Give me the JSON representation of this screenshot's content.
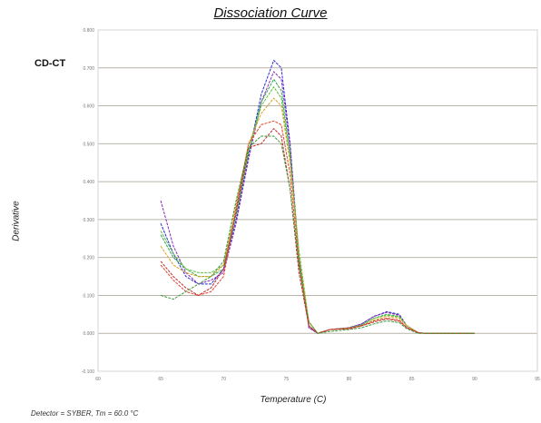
{
  "chart_data": {
    "type": "line",
    "title": "Dissociation Curve",
    "annotation": "CD-CT",
    "xlabel": "Temperature (C)",
    "ylabel": "Derivative",
    "footer": "Detector = SYBER, Tm = 60.0 °C",
    "xlim": [
      60,
      95
    ],
    "ylim": [
      -0.1,
      0.8
    ],
    "xticks": [
      "60",
      "65",
      "70",
      "75",
      "80",
      "85",
      "90",
      "95"
    ],
    "yticks": [
      "-0.100",
      "0.000",
      "0.100",
      "0.200",
      "0.300",
      "0.400",
      "0.500",
      "0.600",
      "0.700",
      "0.800"
    ],
    "grid": "horizontal",
    "series": [
      {
        "color": "#2a2ad6",
        "values": [
          [
            65,
            0.29
          ],
          [
            66,
            0.21
          ],
          [
            67,
            0.15
          ],
          [
            68,
            0.13
          ],
          [
            69,
            0.13
          ],
          [
            70,
            0.17
          ],
          [
            71,
            0.3
          ],
          [
            72,
            0.47
          ],
          [
            73,
            0.63
          ],
          [
            74,
            0.72
          ],
          [
            74.6,
            0.7
          ],
          [
            75.3,
            0.5
          ],
          [
            76,
            0.2
          ],
          [
            76.8,
            0.015
          ],
          [
            77.5,
            0.0
          ],
          [
            78.5,
            0.01
          ],
          [
            80,
            0.015
          ],
          [
            81,
            0.025
          ],
          [
            82,
            0.045
          ],
          [
            83,
            0.057
          ],
          [
            84,
            0.05
          ],
          [
            84.6,
            0.02
          ],
          [
            85.5,
            0.002
          ],
          [
            86,
            0.0
          ],
          [
            88,
            0.0
          ],
          [
            90,
            0.0
          ]
        ]
      },
      {
        "color": "#8a2bb8",
        "values": [
          [
            65,
            0.35
          ],
          [
            66,
            0.23
          ],
          [
            67,
            0.16
          ],
          [
            68,
            0.13
          ],
          [
            69,
            0.14
          ],
          [
            70,
            0.16
          ],
          [
            71,
            0.29
          ],
          [
            72,
            0.46
          ],
          [
            73,
            0.61
          ],
          [
            74,
            0.69
          ],
          [
            74.6,
            0.67
          ],
          [
            75.3,
            0.49
          ],
          [
            76,
            0.19
          ],
          [
            76.8,
            0.015
          ],
          [
            77.5,
            0.0
          ],
          [
            78.5,
            0.01
          ],
          [
            80,
            0.015
          ],
          [
            81,
            0.025
          ],
          [
            82,
            0.045
          ],
          [
            83,
            0.055
          ],
          [
            84,
            0.048
          ],
          [
            84.6,
            0.02
          ],
          [
            85.5,
            0.002
          ],
          [
            86,
            0.0
          ],
          [
            88,
            0.0
          ],
          [
            90,
            0.0
          ]
        ]
      },
      {
        "color": "#2aa84a",
        "values": [
          [
            65,
            0.26
          ],
          [
            66,
            0.2
          ],
          [
            67,
            0.17
          ],
          [
            68,
            0.15
          ],
          [
            69,
            0.15
          ],
          [
            70,
            0.17
          ],
          [
            71,
            0.31
          ],
          [
            72,
            0.48
          ],
          [
            73,
            0.61
          ],
          [
            74,
            0.67
          ],
          [
            74.6,
            0.64
          ],
          [
            75.3,
            0.47
          ],
          [
            76,
            0.2
          ],
          [
            76.8,
            0.02
          ],
          [
            77.5,
            0.0
          ],
          [
            78.5,
            0.01
          ],
          [
            80,
            0.014
          ],
          [
            81,
            0.022
          ],
          [
            82,
            0.04
          ],
          [
            83,
            0.05
          ],
          [
            84,
            0.045
          ],
          [
            84.6,
            0.02
          ],
          [
            85.5,
            0.002
          ],
          [
            86,
            0.0
          ],
          [
            88,
            0.0
          ],
          [
            90,
            0.0
          ]
        ]
      },
      {
        "color": "#5bbf3a",
        "values": [
          [
            65,
            0.27
          ],
          [
            66,
            0.21
          ],
          [
            67,
            0.17
          ],
          [
            68,
            0.16
          ],
          [
            69,
            0.16
          ],
          [
            70,
            0.18
          ],
          [
            71,
            0.32
          ],
          [
            72,
            0.48
          ],
          [
            73,
            0.6
          ],
          [
            74,
            0.65
          ],
          [
            74.6,
            0.62
          ],
          [
            75.3,
            0.46
          ],
          [
            76,
            0.22
          ],
          [
            76.8,
            0.03
          ],
          [
            77.5,
            0.0
          ],
          [
            78.5,
            0.01
          ],
          [
            80,
            0.014
          ],
          [
            81,
            0.022
          ],
          [
            82,
            0.04
          ],
          [
            83,
            0.048
          ],
          [
            84,
            0.043
          ],
          [
            84.6,
            0.02
          ],
          [
            85.5,
            0.002
          ],
          [
            86,
            0.0
          ],
          [
            88,
            0.0
          ],
          [
            90,
            0.0
          ]
        ]
      },
      {
        "color": "#d9a01e",
        "values": [
          [
            65,
            0.23
          ],
          [
            66,
            0.18
          ],
          [
            67,
            0.16
          ],
          [
            68,
            0.15
          ],
          [
            69,
            0.15
          ],
          [
            70,
            0.18
          ],
          [
            71,
            0.34
          ],
          [
            72,
            0.5
          ],
          [
            73,
            0.58
          ],
          [
            74,
            0.62
          ],
          [
            74.6,
            0.6
          ],
          [
            75.3,
            0.45
          ],
          [
            76,
            0.21
          ],
          [
            76.8,
            0.03
          ],
          [
            77.5,
            0.0
          ],
          [
            78.5,
            0.01
          ],
          [
            80,
            0.014
          ],
          [
            81,
            0.02
          ],
          [
            82,
            0.035
          ],
          [
            83,
            0.045
          ],
          [
            84,
            0.04
          ],
          [
            84.6,
            0.02
          ],
          [
            85.5,
            0.002
          ],
          [
            86,
            0.0
          ],
          [
            88,
            0.0
          ],
          [
            90,
            0.0
          ]
        ]
      },
      {
        "color": "#e0442a",
        "values": [
          [
            65,
            0.18
          ],
          [
            66,
            0.14
          ],
          [
            67,
            0.11
          ],
          [
            68,
            0.1
          ],
          [
            69,
            0.11
          ],
          [
            70,
            0.15
          ],
          [
            71,
            0.33
          ],
          [
            72,
            0.5
          ],
          [
            73,
            0.55
          ],
          [
            74,
            0.56
          ],
          [
            74.6,
            0.55
          ],
          [
            75.3,
            0.42
          ],
          [
            76,
            0.18
          ],
          [
            76.8,
            0.02
          ],
          [
            77.5,
            0.0
          ],
          [
            78.5,
            0.01
          ],
          [
            80,
            0.013
          ],
          [
            81,
            0.02
          ],
          [
            82,
            0.033
          ],
          [
            83,
            0.04
          ],
          [
            84,
            0.035
          ],
          [
            84.6,
            0.015
          ],
          [
            85.5,
            0.002
          ],
          [
            86,
            0.0
          ],
          [
            88,
            0.0
          ],
          [
            90,
            0.0
          ]
        ]
      },
      {
        "color": "#c42a2a",
        "values": [
          [
            65,
            0.19
          ],
          [
            66,
            0.15
          ],
          [
            67,
            0.12
          ],
          [
            68,
            0.1
          ],
          [
            69,
            0.12
          ],
          [
            70,
            0.17
          ],
          [
            71,
            0.32
          ],
          [
            72,
            0.49
          ],
          [
            73,
            0.5
          ],
          [
            74,
            0.54
          ],
          [
            74.6,
            0.52
          ],
          [
            75.3,
            0.38
          ],
          [
            76,
            0.16
          ],
          [
            76.8,
            0.02
          ],
          [
            77.5,
            0.0
          ],
          [
            78.5,
            0.01
          ],
          [
            80,
            0.012
          ],
          [
            81,
            0.02
          ],
          [
            82,
            0.03
          ],
          [
            83,
            0.038
          ],
          [
            84,
            0.032
          ],
          [
            84.6,
            0.015
          ],
          [
            85.5,
            0.002
          ],
          [
            86,
            0.0
          ],
          [
            88,
            0.0
          ],
          [
            90,
            0.0
          ]
        ]
      },
      {
        "color": "#3a9a3a",
        "values": [
          [
            65,
            0.1
          ],
          [
            66,
            0.09
          ],
          [
            67,
            0.11
          ],
          [
            68,
            0.13
          ],
          [
            69,
            0.15
          ],
          [
            70,
            0.19
          ],
          [
            71,
            0.35
          ],
          [
            72,
            0.49
          ],
          [
            73,
            0.52
          ],
          [
            74,
            0.52
          ],
          [
            74.6,
            0.5
          ],
          [
            75.3,
            0.38
          ],
          [
            76,
            0.18
          ],
          [
            76.8,
            0.03
          ],
          [
            77.5,
            0.0
          ],
          [
            78.5,
            0.005
          ],
          [
            80,
            0.01
          ],
          [
            81,
            0.015
          ],
          [
            82,
            0.025
          ],
          [
            83,
            0.033
          ],
          [
            84,
            0.028
          ],
          [
            84.6,
            0.012
          ],
          [
            85.5,
            0.0
          ],
          [
            86,
            0.0
          ],
          [
            88,
            0.0
          ],
          [
            90,
            0.0
          ]
        ]
      }
    ]
  }
}
